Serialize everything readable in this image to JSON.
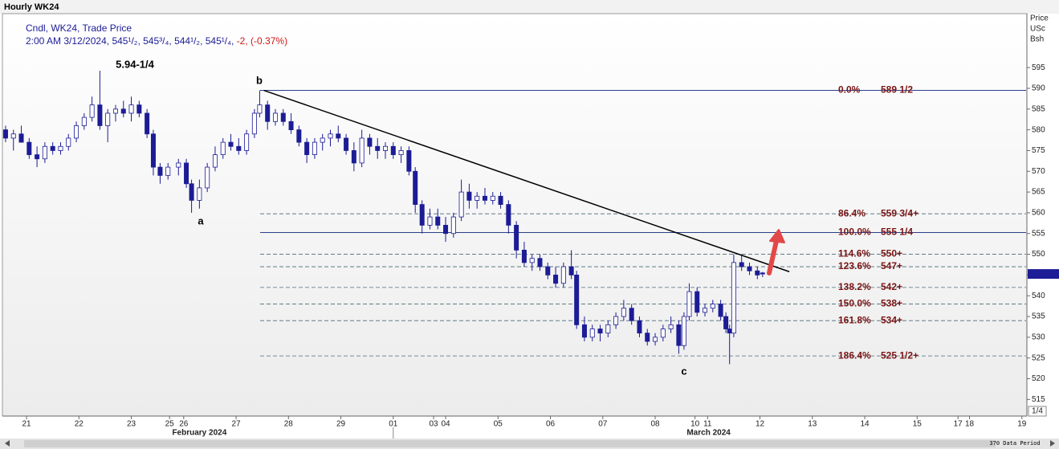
{
  "header": {
    "title": "Hourly WK24"
  },
  "chart_data": {
    "type": "candlestick",
    "legend": {
      "line1": "Cndl, WK24, Trade Price",
      "time": "2:00 AM 3/12/2024,",
      "quote": [
        "545¹/₂,",
        "545³/₄,",
        "544¹/₂,",
        "545¹/₄,"
      ],
      "change": "-2,",
      "change_pct": "(-0.37%)"
    },
    "y_axis_title": [
      "Price",
      "USc",
      "Bsh"
    ],
    "color": "#1c1c96",
    "ylim": [
      511,
      608
    ],
    "yticks": [
      515,
      520,
      525,
      530,
      535,
      540,
      545,
      550,
      555,
      560,
      565,
      570,
      575,
      580,
      585,
      590,
      595
    ],
    "xlim": [
      -0.43,
      19.08
    ],
    "xticks": [
      {
        "value": 0,
        "label": "21"
      },
      {
        "value": 1,
        "label": "22"
      },
      {
        "value": 2,
        "label": "23"
      },
      {
        "value": 2.73,
        "label": "25"
      },
      {
        "value": 3,
        "label": "26"
      },
      {
        "value": 4,
        "label": "27"
      },
      {
        "value": 5,
        "label": "28"
      },
      {
        "value": 6,
        "label": "29"
      },
      {
        "value": 7,
        "label": "01"
      },
      {
        "value": 7.77,
        "label": "03"
      },
      {
        "value": 8,
        "label": "04"
      },
      {
        "value": 9,
        "label": "05"
      },
      {
        "value": 10,
        "label": "06"
      },
      {
        "value": 11,
        "label": "07"
      },
      {
        "value": 12,
        "label": "08"
      },
      {
        "value": 12.76,
        "label": "10"
      },
      {
        "value": 13,
        "label": "11"
      },
      {
        "value": 14,
        "label": "12"
      },
      {
        "value": 15,
        "label": "13"
      },
      {
        "value": 16,
        "label": "14"
      },
      {
        "value": 17,
        "label": "15"
      },
      {
        "value": 17.78,
        "label": "17"
      },
      {
        "value": 18,
        "label": "18"
      },
      {
        "value": 19,
        "label": "19"
      }
    ],
    "months": [
      {
        "value": 3.3,
        "label": "February 2024"
      },
      {
        "value": 13.02,
        "label": "March 2024"
      }
    ],
    "candles": {
      "x": [
        -0.4,
        -0.25,
        -0.1,
        0.05,
        0.2,
        0.35,
        0.5,
        0.65,
        0.8,
        0.95,
        1.1,
        1.25,
        1.4,
        1.55,
        1.7,
        1.85,
        2.0,
        2.15,
        2.3,
        2.42,
        2.55,
        2.7,
        2.9,
        3.05,
        3.15,
        3.3,
        3.45,
        3.6,
        3.75,
        3.9,
        4.05,
        4.2,
        4.35,
        4.45,
        4.6,
        4.75,
        4.9,
        5.05,
        5.2,
        5.35,
        5.5,
        5.65,
        5.8,
        5.95,
        6.1,
        6.25,
        6.4,
        6.55,
        6.7,
        6.85,
        7.0,
        7.15,
        7.3,
        7.42,
        7.55,
        7.7,
        7.85,
        8.0,
        8.15,
        8.3,
        8.45,
        8.6,
        8.75,
        8.9,
        9.05,
        9.2,
        9.35,
        9.5,
        9.65,
        9.8,
        9.95,
        10.1,
        10.25,
        10.4,
        10.5,
        10.65,
        10.8,
        10.95,
        11.1,
        11.25,
        11.4,
        11.55,
        11.7,
        11.85,
        12.0,
        12.15,
        12.3,
        12.45,
        12.55,
        12.65,
        12.8,
        12.95,
        13.1,
        13.25,
        13.35,
        13.42,
        13.5,
        13.65,
        13.8,
        13.95,
        14.05
      ],
      "open": [
        580,
        578,
        579,
        577,
        574,
        573,
        576,
        575,
        576,
        578,
        581,
        583,
        586,
        581,
        584,
        585,
        584,
        586,
        584,
        579,
        571,
        569,
        571,
        572,
        567,
        563,
        566,
        571,
        574,
        577,
        576,
        575,
        579,
        584,
        586,
        582,
        584,
        582,
        580,
        577,
        574,
        577,
        578,
        579,
        578,
        575,
        572,
        578,
        576,
        575,
        576,
        574,
        575,
        570,
        562,
        557,
        559,
        557,
        555,
        559,
        565,
        563,
        564,
        563,
        564,
        562,
        557,
        551,
        548,
        549,
        547,
        545,
        543,
        547,
        545,
        533,
        530,
        532,
        531,
        533,
        535,
        537,
        534,
        531,
        529,
        530,
        532,
        533,
        528,
        535,
        541,
        536,
        537,
        538,
        535,
        532,
        531,
        548,
        547,
        546,
        545.5
      ],
      "high": [
        581,
        580,
        581,
        578,
        576,
        577,
        577,
        577,
        579,
        582,
        584,
        588,
        594.25,
        585,
        586,
        587,
        588,
        587,
        585,
        580,
        572,
        572,
        573,
        573,
        568,
        568,
        572,
        576,
        578,
        579,
        578,
        580,
        585,
        589.5,
        587,
        585,
        585,
        584,
        581,
        578,
        578,
        579,
        580,
        581,
        579,
        577,
        580,
        579,
        578,
        577,
        577,
        576,
        576,
        571,
        563,
        561,
        561,
        559,
        560,
        568,
        567,
        565,
        566,
        565,
        565,
        563,
        558,
        553,
        550,
        550,
        548,
        547,
        548,
        551,
        546,
        535,
        533,
        533,
        534,
        536,
        539,
        538,
        535,
        532,
        531,
        533,
        535,
        534,
        536,
        543,
        542,
        538,
        539,
        539,
        536,
        533,
        550,
        550,
        548,
        547,
        545.75
      ],
      "low": [
        577,
        575,
        577,
        573,
        571,
        572,
        574,
        574,
        575,
        577,
        580,
        582,
        580,
        577,
        582,
        583,
        582,
        583,
        578,
        569,
        567,
        568,
        569,
        566,
        560,
        561,
        565,
        570,
        573,
        575,
        574,
        574,
        578,
        583,
        580,
        581,
        581,
        579,
        576,
        572,
        573,
        575,
        576,
        577,
        574,
        570,
        571,
        574,
        573,
        573,
        573,
        572,
        569,
        560,
        555,
        556,
        556,
        553,
        554,
        558,
        561,
        561,
        562,
        562,
        561,
        555,
        549,
        547,
        546,
        546,
        544,
        542,
        542,
        544,
        532,
        529,
        529,
        529,
        530,
        532,
        534,
        533,
        530,
        528,
        528,
        529,
        531,
        526,
        527,
        534,
        535,
        535,
        536,
        534,
        531,
        523.5,
        530,
        546,
        545,
        544,
        544.5
      ],
      "close": [
        578,
        579,
        577,
        574,
        573,
        576,
        575,
        576,
        578,
        581,
        583,
        586,
        581,
        584,
        585,
        584,
        586,
        584,
        579,
        571,
        569,
        571,
        572,
        567,
        563,
        566,
        571,
        574,
        577,
        576,
        575,
        579,
        584,
        586,
        582,
        584,
        582,
        580,
        577,
        574,
        577,
        578,
        579,
        578,
        575,
        572,
        578,
        576,
        575,
        576,
        574,
        575,
        570,
        562,
        557,
        559,
        557,
        555,
        559,
        565,
        563,
        564,
        563,
        564,
        562,
        557,
        551,
        548,
        549,
        547,
        545,
        543,
        547,
        545,
        533,
        530,
        532,
        531,
        533,
        535,
        537,
        534,
        531,
        529,
        530,
        532,
        533,
        528,
        535,
        541,
        536,
        537,
        538,
        535,
        532,
        531,
        548,
        547,
        546,
        545,
        545.25
      ]
    },
    "trendline": {
      "x": [
        4.53,
        14.56
      ],
      "y": [
        589.5,
        545.8
      ]
    },
    "fib_levels": [
      {
        "pct": "0.0%",
        "price": "589 1/2",
        "value": 589.5,
        "dashed": false
      },
      {
        "pct": "86.4%",
        "price": "559 3/4+",
        "value": 559.75,
        "dashed": true
      },
      {
        "pct": "100.0%",
        "price": "555 1/4",
        "value": 555.25,
        "dashed": false
      },
      {
        "pct": "114.6%",
        "price": "550+",
        "value": 550,
        "dashed": true
      },
      {
        "pct": "123.6%",
        "price": "547+",
        "value": 547,
        "dashed": true
      },
      {
        "pct": "138.2%",
        "price": "542+",
        "value": 542,
        "dashed": true
      },
      {
        "pct": "150.0%",
        "price": "538+",
        "value": 538,
        "dashed": true
      },
      {
        "pct": "161.8%",
        "price": "534+",
        "value": 534,
        "dashed": true
      },
      {
        "pct": "186.4%",
        "price": "525 1/2+",
        "value": 525.5,
        "dashed": true
      }
    ],
    "annotations": [
      "5.94-1/4",
      "a",
      "b",
      "c"
    ]
  },
  "footer": {
    "scale_box": "1/4",
    "period": "370 Data Period"
  }
}
